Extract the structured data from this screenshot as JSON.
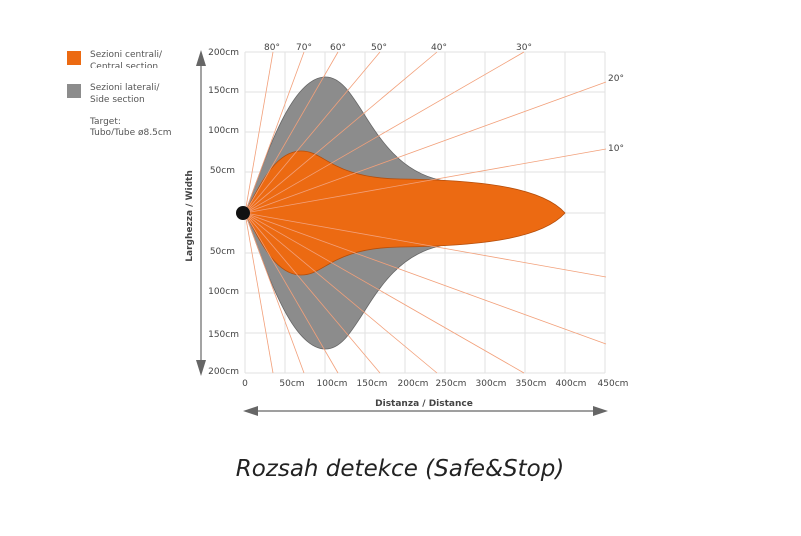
{
  "legend": [
    {
      "label": "Sezioni centrali/",
      "sublabel": "Central section"
    },
    {
      "label": "Sezioni laterali/",
      "sublabel": "Side section"
    }
  ],
  "target": {
    "label": "Target:",
    "sublabel": "Tubo/Tube ø8,5cm"
  },
  "y_axis": {
    "label": "Larghezza / Width",
    "ticks": [
      "200cm",
      "150cm",
      "100cm",
      "50cm",
      "50cm",
      "100cm",
      "150cm",
      "200cm"
    ]
  },
  "x_axis": {
    "label": "Distanza / Distance",
    "ticks": [
      "0",
      "50cm",
      "100cm",
      "150cm",
      "200cm",
      "250cm",
      "300cm",
      "350cm",
      "400cm",
      "450cm"
    ]
  },
  "angles": [
    "80°",
    "70°",
    "60°",
    "50°",
    "40°",
    "30°",
    "20°",
    "10°"
  ],
  "caption": "Rozsah detekce (Safe&Stop)"
}
